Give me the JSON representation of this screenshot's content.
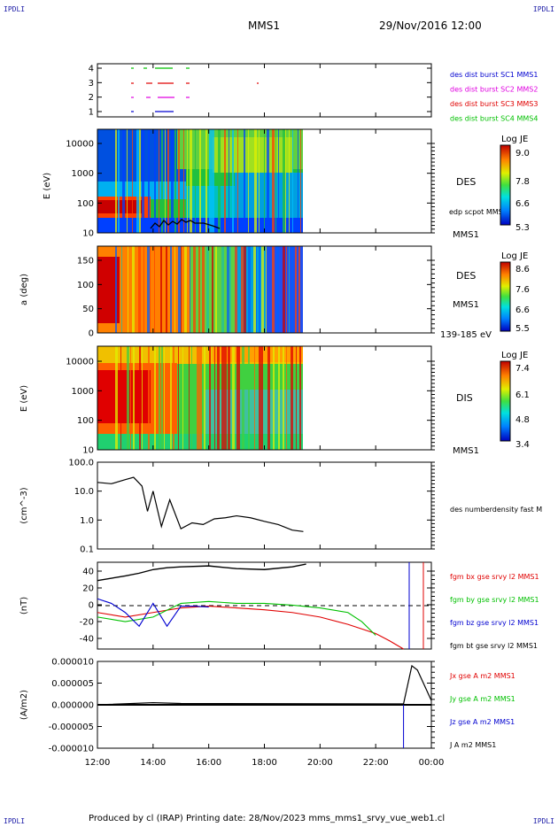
{
  "corner_label": "IPDLI",
  "header": {
    "title": "MMS1",
    "date": "29/Nov/2016 12:00"
  },
  "footer": "Produced by cl (IRAP)   Printing date: 28/Nov/2023   mms_mms1_srvy_vue_web1.cl",
  "colors": {
    "red": "#e00000",
    "green": "#00c000",
    "blue": "#0000d0",
    "magenta": "#e000e0",
    "black": "#000000"
  },
  "x_axis": {
    "ticks": [
      "12:00",
      "14:00",
      "16:00",
      "18:00",
      "20:00",
      "22:00",
      "00:00"
    ],
    "range_hours": [
      12,
      24
    ]
  },
  "panels": {
    "burst": {
      "yticks": [
        "4",
        "3",
        "2",
        "1"
      ],
      "legend": [
        {
          "text": "des dist burst SC1 MMS1",
          "color": "#0000d0"
        },
        {
          "text": "des dist burst SC2 MMS2",
          "color": "#e000e0"
        },
        {
          "text": "des dist burst SC3 MMS3",
          "color": "#e00000"
        },
        {
          "text": "des dist burst SC4 MMS4",
          "color": "#00c000"
        }
      ]
    },
    "des_energy": {
      "ylabel": "E (eV)",
      "yticks": [
        "10000",
        "1000",
        "100",
        "10"
      ],
      "right_labels": [
        "DES",
        "edp scpot MMS1",
        "MMS1"
      ],
      "colorbar": {
        "title": "Log JE",
        "ticks": [
          "9.0",
          "7.8",
          "6.6",
          "5.3"
        ]
      }
    },
    "des_pitch": {
      "ylabel": "a (deg)",
      "yticks": [
        "150",
        "100",
        "50",
        "0"
      ],
      "right_labels": [
        "DES",
        "MMS1",
        "139-185 eV"
      ],
      "colorbar": {
        "title": "Log JE",
        "ticks": [
          "8.6",
          "7.6",
          "6.6",
          "5.5"
        ]
      }
    },
    "dis_energy": {
      "ylabel": "E (eV)",
      "yticks": [
        "10000",
        "1000",
        "100",
        "10"
      ],
      "right_labels": [
        "DIS",
        "MMS1"
      ],
      "colorbar": {
        "title": "Log JE",
        "ticks": [
          "7.4",
          "6.1",
          "4.8",
          "3.4"
        ]
      }
    },
    "density": {
      "ylabel": "(cm^-3)",
      "yticks": [
        "100.0",
        "10.0",
        "1.0",
        "0.1"
      ],
      "legend": "des numberdensity fast M"
    },
    "bfield": {
      "ylabel": "(nT)",
      "yticks": [
        "40",
        "20",
        "0",
        "-20",
        "-40"
      ],
      "legend": [
        {
          "text": "fgm bx gse srvy l2 MMS1",
          "color": "#e00000"
        },
        {
          "text": "fgm by gse srvy l2 MMS1",
          "color": "#00c000"
        },
        {
          "text": "fgm bz gse srvy l2 MMS1",
          "color": "#0000d0"
        },
        {
          "text": "fgm bt gse srvy l2 MMS1",
          "color": "#000000"
        }
      ]
    },
    "current": {
      "ylabel": "(A/m2)",
      "yticks": [
        "0.000010",
        "0.000005",
        "0.000000",
        "-0.000005",
        "-0.000010"
      ],
      "legend": [
        {
          "text": "Jx gse A m2 MMS1",
          "color": "#e00000"
        },
        {
          "text": "Jy gse A m2 MMS1",
          "color": "#00c000"
        },
        {
          "text": "Jz gse A m2 MMS1",
          "color": "#0000d0"
        },
        {
          "text": "J A m2 MMS1",
          "color": "#000000"
        }
      ]
    }
  },
  "chart_data": {
    "type": "line",
    "title": "MMS1",
    "xlabel": "",
    "x_range": [
      "12:00",
      "00:00"
    ],
    "density": {
      "ylabel": "(cm^-3)",
      "yscale": "log",
      "ylim": [
        0.1,
        100
      ],
      "x": [
        12.0,
        12.5,
        13.0,
        13.3,
        13.6,
        13.8,
        14.0,
        14.3,
        14.6,
        15.0,
        15.4,
        15.8,
        16.2,
        16.6,
        17.0,
        17.5,
        18.0,
        18.5,
        19.0,
        19.4
      ],
      "values": [
        20,
        18,
        25,
        30,
        15,
        2,
        10,
        0.6,
        5,
        0.5,
        0.8,
        0.7,
        1.1,
        1.2,
        1.4,
        1.2,
        0.9,
        0.7,
        0.45,
        0.4
      ]
    },
    "bfield": {
      "ylabel": "(nT)",
      "ylim": [
        -45,
        50
      ],
      "series": [
        {
          "name": "fgm bx gse srvy l2 MMS1",
          "x": [
            12.0,
            13.0,
            14.0,
            15.0,
            16.0,
            17.0,
            18.0,
            19.0,
            20.0,
            21.0,
            22.0,
            22.5,
            23.0
          ],
          "values": [
            -5,
            -10,
            -5,
            0,
            2,
            0,
            -2,
            -5,
            -10,
            -18,
            -28,
            -36,
            -45
          ]
        },
        {
          "name": "fgm by gse srvy l2 MMS1",
          "x": [
            12.0,
            13.0,
            14.0,
            15.0,
            16.0,
            17.0,
            18.0,
            19.0,
            20.0,
            21.0,
            21.5,
            22.0
          ],
          "values": [
            -10,
            -15,
            -10,
            5,
            7,
            5,
            5,
            3,
            0,
            -5,
            -15,
            -30
          ]
        },
        {
          "name": "fgm bz gse srvy l2 MMS1",
          "x": [
            12.0,
            12.5,
            13.0,
            13.5,
            14.0,
            14.5,
            15.0,
            15.5,
            16.0
          ],
          "values": [
            10,
            5,
            -5,
            -20,
            5,
            -20,
            2,
            2,
            1
          ]
        },
        {
          "name": "fgm bt gse srvy l2 MMS1",
          "x": [
            12.0,
            13.0,
            13.5,
            14.0,
            14.5,
            15.0,
            16.0,
            17.0,
            18.0,
            19.0,
            19.5
          ],
          "values": [
            30,
            35,
            38,
            42,
            44,
            45,
            46,
            43,
            42,
            45,
            48
          ]
        }
      ]
    },
    "current": {
      "ylabel": "(A/m2)",
      "ylim": [
        -1e-05,
        1e-05
      ],
      "series": [
        {
          "name": "J A m2 MMS1",
          "x": [
            12.0,
            14.0,
            15.0,
            23.0,
            23.3,
            23.5,
            24.0
          ],
          "values": [
            0,
            5e-07,
            3e-07,
            2e-07,
            9e-06,
            8e-06,
            1e-06
          ]
        }
      ]
    }
  }
}
